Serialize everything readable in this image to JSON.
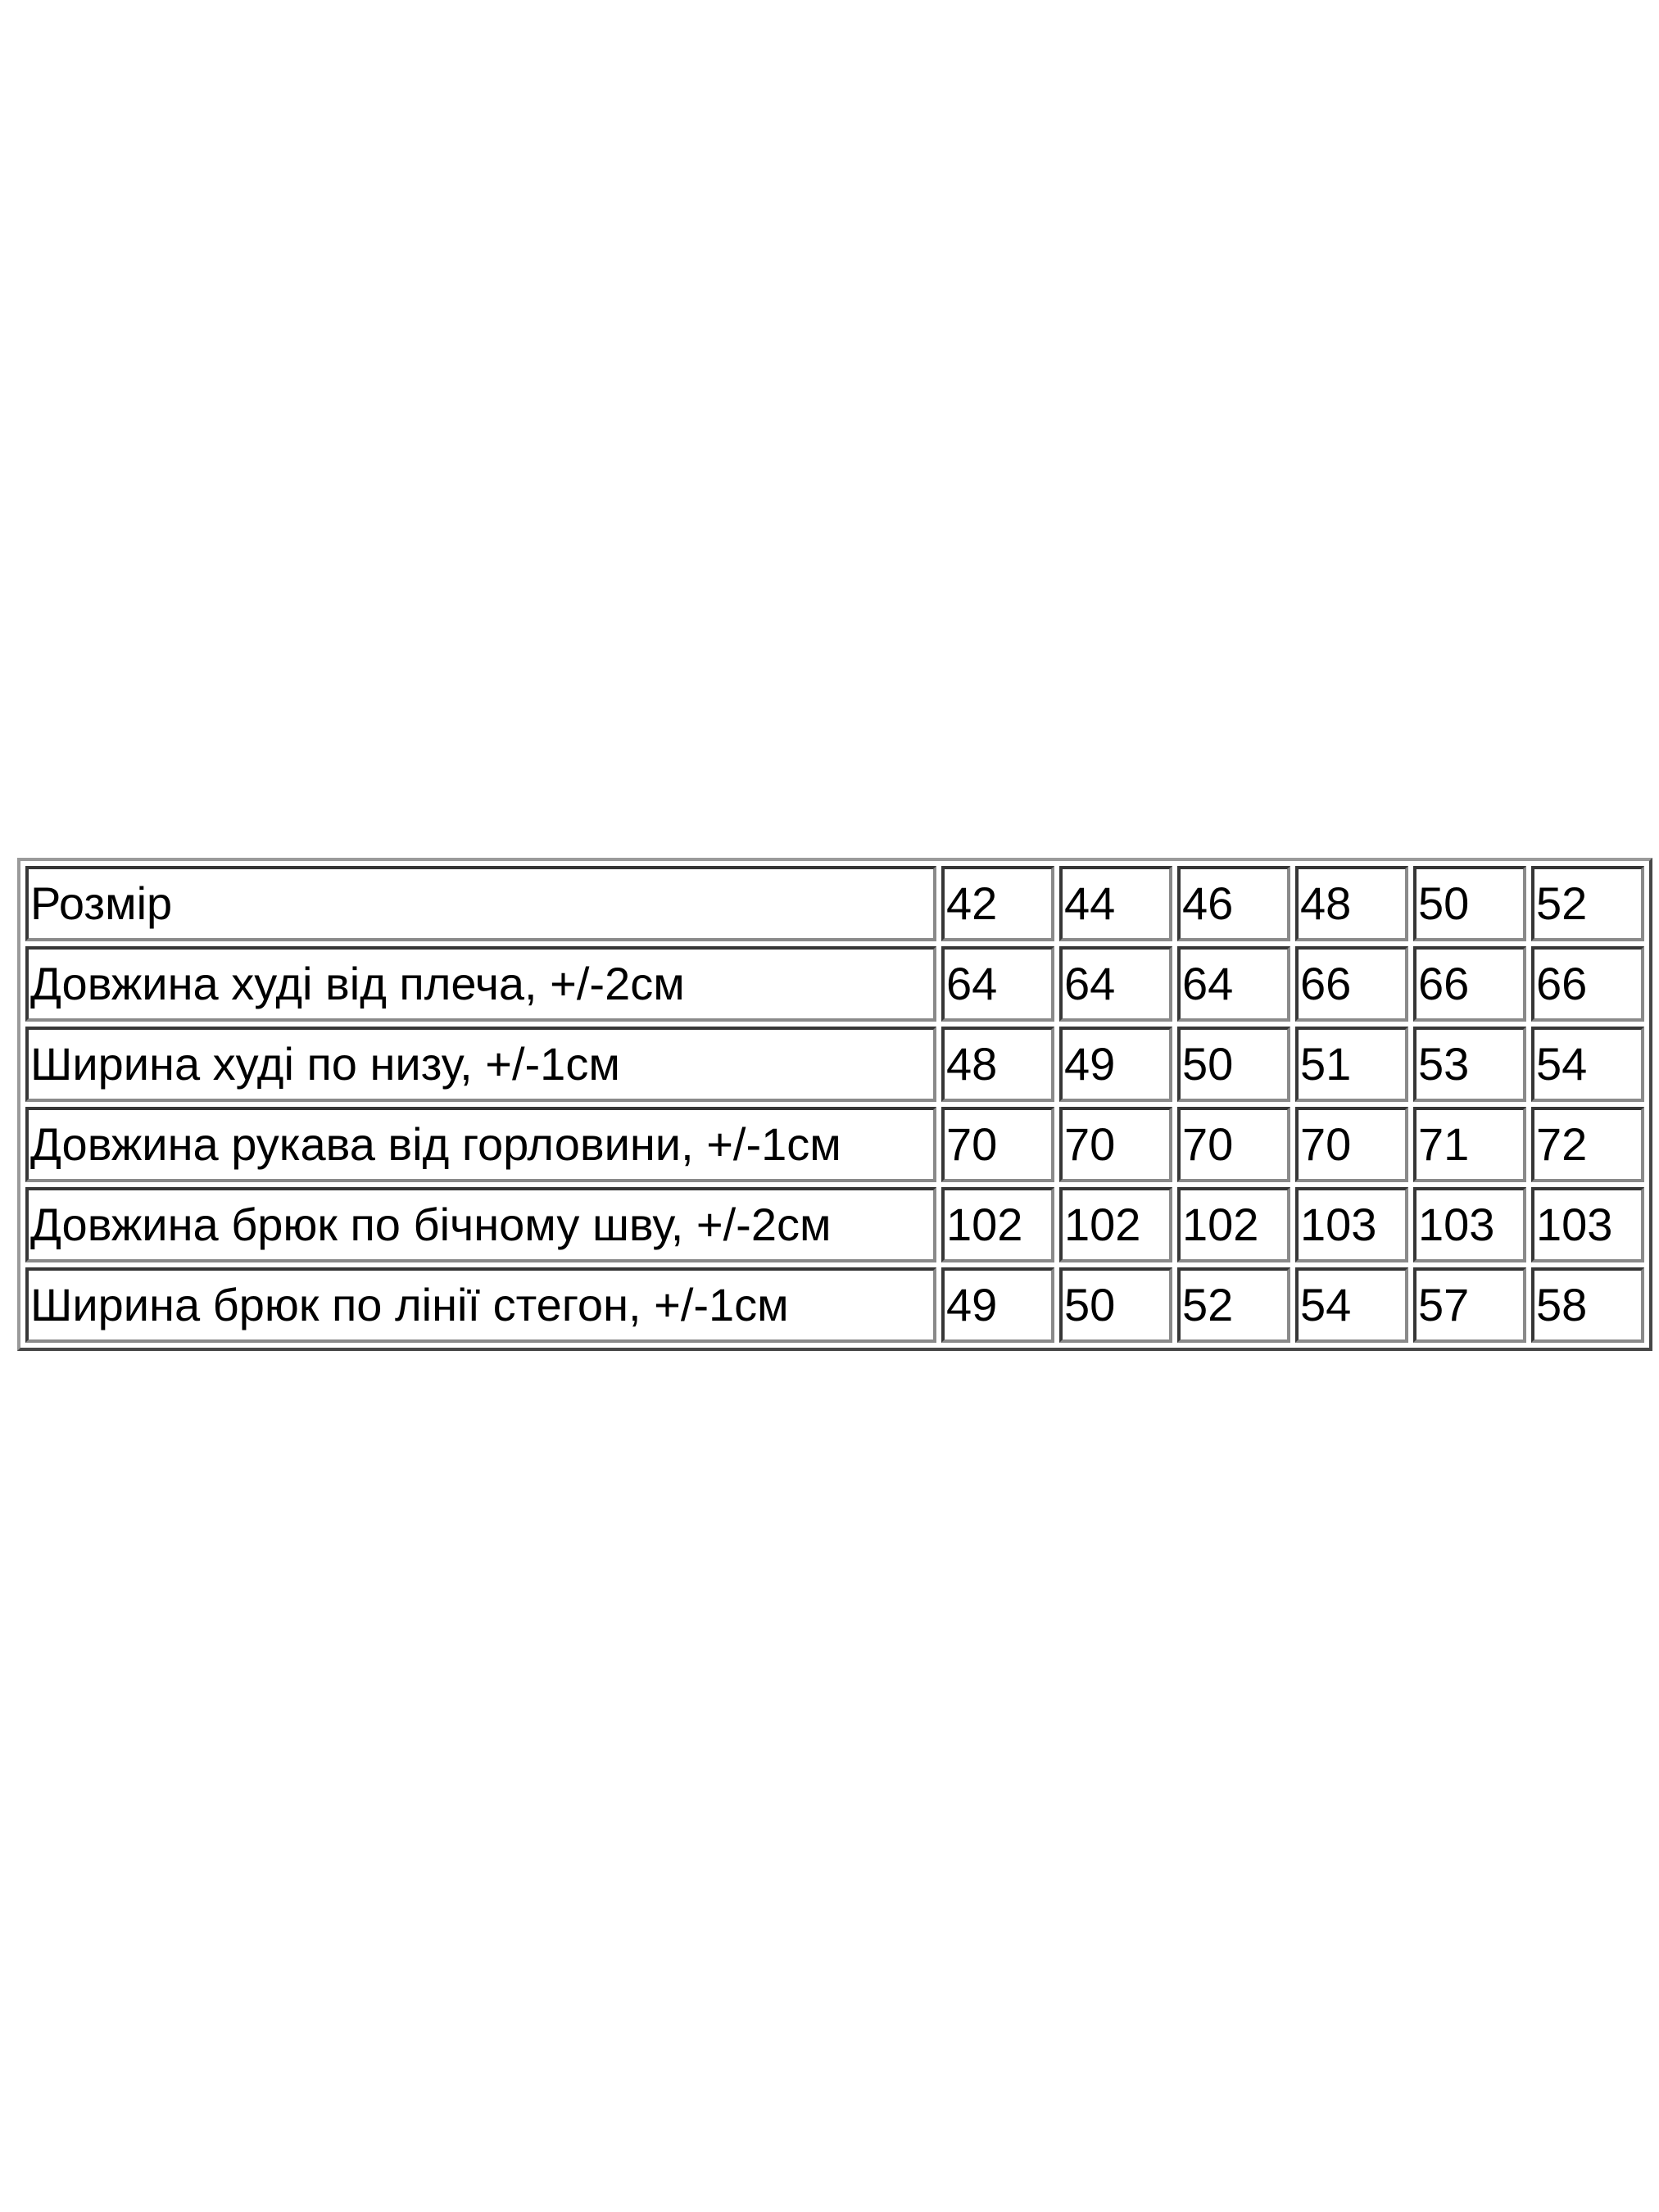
{
  "table": {
    "header": {
      "label": "Розмір",
      "sizes": [
        "42",
        "44",
        "46",
        "48",
        "50",
        "52"
      ]
    },
    "rows": [
      {
        "label": "Довжина худі від плеча, +/-2см",
        "values": [
          "64",
          "64",
          "64",
          "66",
          "66",
          "66"
        ]
      },
      {
        "label": "Ширина худі по низу, +/-1см",
        "values": [
          "48",
          "49",
          "50",
          "51",
          "53",
          "54"
        ]
      },
      {
        "label": "Довжина рукава від горловини, +/-1см",
        "values": [
          "70",
          "70",
          "70",
          "70",
          "71",
          "72"
        ]
      },
      {
        "label": "Довжина брюк по бічному шву, +/-2см",
        "values": [
          "102",
          "102",
          "102",
          "103",
          "103",
          "103"
        ]
      },
      {
        "label": "Ширина брюк по лінії стегон, +/-1см",
        "values": [
          "49",
          "50",
          "52",
          "54",
          "57",
          "58"
        ]
      }
    ]
  }
}
